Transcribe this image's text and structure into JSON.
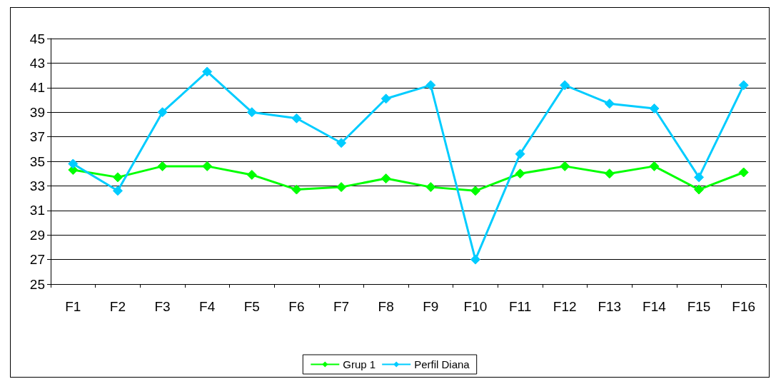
{
  "chart_data": {
    "type": "line",
    "categories": [
      "F1",
      "F2",
      "F3",
      "F4",
      "F5",
      "F6",
      "F7",
      "F8",
      "F9",
      "F10",
      "F11",
      "F12",
      "F13",
      "F14",
      "F15",
      "F16"
    ],
    "series": [
      {
        "name": "Grup 1",
        "color": "#00ff00",
        "values": [
          34.3,
          33.7,
          34.6,
          34.6,
          33.9,
          32.7,
          32.9,
          33.6,
          32.9,
          32.6,
          34.0,
          34.6,
          34.0,
          34.6,
          32.7,
          34.1
        ]
      },
      {
        "name": "Perfil Diana",
        "color": "#00ccff",
        "values": [
          34.8,
          32.6,
          39.0,
          42.3,
          39.0,
          38.5,
          36.5,
          40.1,
          41.2,
          27.0,
          35.6,
          41.2,
          39.7,
          39.3,
          33.7,
          41.2
        ]
      }
    ],
    "ylim": [
      25,
      45
    ],
    "yticks": [
      25,
      27,
      29,
      31,
      33,
      35,
      37,
      39,
      41,
      43,
      45
    ],
    "grid": "y",
    "legend": "bottom",
    "marker": "diamond",
    "line_style": "solid"
  }
}
